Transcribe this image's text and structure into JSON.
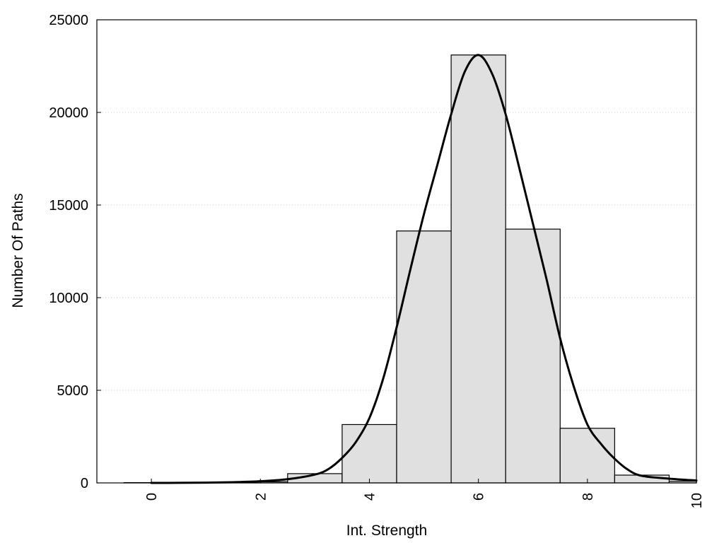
{
  "chart_data": {
    "type": "bar",
    "title": "",
    "xlabel": "Int. Strength",
    "ylabel": "Number Of Paths",
    "xlim": [
      -1,
      10
    ],
    "ylim": [
      0,
      25000
    ],
    "grid": true,
    "x_ticks": [
      0,
      2,
      4,
      6,
      8,
      10
    ],
    "y_ticks": [
      0,
      5000,
      10000,
      15000,
      20000,
      25000
    ],
    "bar_color": "#e0e0e0",
    "bins": [
      {
        "center": 0,
        "value": 15
      },
      {
        "center": 1,
        "value": 20
      },
      {
        "center": 2,
        "value": 60
      },
      {
        "center": 3,
        "value": 500
      },
      {
        "center": 4,
        "value": 3150
      },
      {
        "center": 5,
        "value": 13600
      },
      {
        "center": 6,
        "value": 23100
      },
      {
        "center": 7,
        "value": 13700
      },
      {
        "center": 8,
        "value": 2950
      },
      {
        "center": 9,
        "value": 420
      },
      {
        "center": 10,
        "value": 90
      }
    ],
    "fit_curve": {
      "x": [
        0,
        0.5,
        1,
        1.5,
        2,
        2.5,
        3,
        3.25,
        3.5,
        3.75,
        4,
        4.25,
        4.5,
        4.75,
        5,
        5.25,
        5.5,
        5.75,
        6,
        6.25,
        6.5,
        6.75,
        7,
        7.25,
        7.5,
        7.75,
        8,
        8.25,
        8.5,
        8.75,
        9,
        9.5,
        10
      ],
      "y": [
        0,
        3,
        15,
        40,
        90,
        200,
        450,
        750,
        1350,
        2200,
        3500,
        5600,
        8400,
        11500,
        14500,
        17200,
        19900,
        22200,
        23100,
        22100,
        19900,
        17000,
        14000,
        11000,
        7800,
        5200,
        3150,
        2100,
        1300,
        700,
        380,
        230,
        130
      ]
    }
  }
}
